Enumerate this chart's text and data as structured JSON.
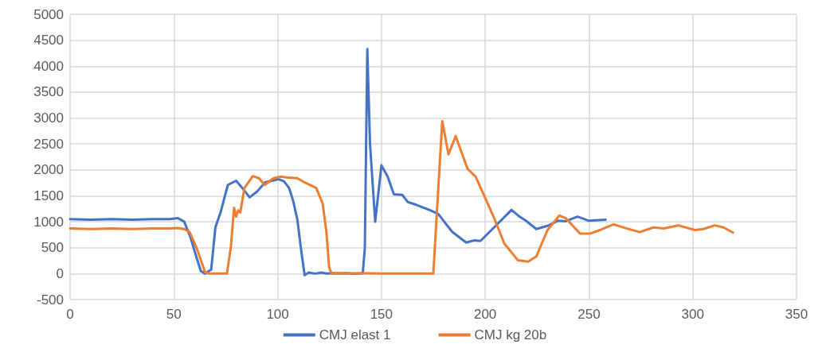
{
  "chart_data": {
    "type": "line",
    "xlim": [
      0,
      350
    ],
    "xticks": [
      0,
      50,
      100,
      150,
      200,
      250,
      300,
      350
    ],
    "ylim": [
      -500,
      5000
    ],
    "yticks": [
      -500,
      0,
      500,
      1000,
      1500,
      2000,
      2500,
      3000,
      3500,
      4000,
      4500,
      5000
    ],
    "grid": true,
    "legend": "bottom",
    "marker": "none",
    "line_style": "solid",
    "series": [
      {
        "name": "CMJ elast 1",
        "color": "#4472c4",
        "x": [
          0,
          10,
          20,
          30,
          40,
          48,
          52,
          55,
          58,
          61,
          63,
          65,
          68,
          70,
          72.5,
          76,
          80,
          83,
          86.5,
          90,
          94,
          100.5,
          103,
          105.5,
          107.5,
          109.5,
          111.5,
          113,
          115,
          118,
          121,
          124,
          127,
          130,
          133,
          136,
          139,
          141,
          142,
          143.2,
          144.5,
          147,
          150,
          153,
          156,
          160,
          162.7,
          166.6,
          173.5,
          177.4,
          184,
          190.8,
          194.6,
          197.7,
          203,
          212.7,
          216.5,
          219.6,
          224.6,
          230,
          235,
          238.8,
          244.5,
          250,
          258
        ],
        "values": [
          1050,
          1040,
          1050,
          1040,
          1050,
          1050,
          1070,
          1000,
          700,
          300,
          50,
          0,
          80,
          890,
          1180,
          1710,
          1790,
          1650,
          1470,
          1580,
          1760,
          1820,
          1780,
          1650,
          1400,
          1040,
          400,
          -30,
          20,
          0,
          20,
          0,
          10,
          0,
          10,
          0,
          0,
          10,
          490,
          4330,
          2500,
          1000,
          2090,
          1870,
          1530,
          1520,
          1380,
          1330,
          1220,
          1150,
          810,
          600,
          640,
          630,
          840,
          1230,
          1100,
          1020,
          860,
          920,
          1020,
          1010,
          1100,
          1020,
          1040
        ]
      },
      {
        "name": "CMJ kg 20b",
        "color": "#ed7d31",
        "x": [
          0,
          10,
          20,
          30,
          40,
          48,
          52,
          55,
          57.6,
          61,
          65,
          67,
          70,
          73,
          75.6,
          77.5,
          79,
          80,
          81,
          82,
          84,
          88,
          91,
          93.7,
          98,
          101.7,
          105,
          109.4,
          113,
          118.6,
          121.7,
          123.5,
          124.8,
          126,
          130,
          135,
          140,
          150,
          160,
          170,
          175,
          179.3,
          182.3,
          185.8,
          191.5,
          195.4,
          204,
          209.2,
          215.7,
          220.7,
          224.6,
          230,
          235.7,
          238.8,
          245.7,
          250.3,
          255.3,
          261.8,
          268.3,
          274.5,
          281,
          286,
          293,
          301,
          305,
          310.6,
          314.8,
          319.4
        ],
        "values": [
          870,
          860,
          870,
          860,
          870,
          870,
          880,
          860,
          800,
          490,
          30,
          0,
          0,
          0,
          0,
          530,
          1270,
          1100,
          1220,
          1180,
          1650,
          1880,
          1840,
          1710,
          1840,
          1870,
          1850,
          1840,
          1760,
          1650,
          1350,
          800,
          120,
          0,
          10,
          0,
          10,
          0,
          0,
          0,
          0,
          2940,
          2300,
          2650,
          2020,
          1870,
          1100,
          580,
          260,
          230,
          330,
          840,
          1120,
          1070,
          770,
          770,
          840,
          950,
          870,
          800,
          890,
          870,
          930,
          840,
          860,
          930,
          890,
          790
        ]
      }
    ]
  }
}
